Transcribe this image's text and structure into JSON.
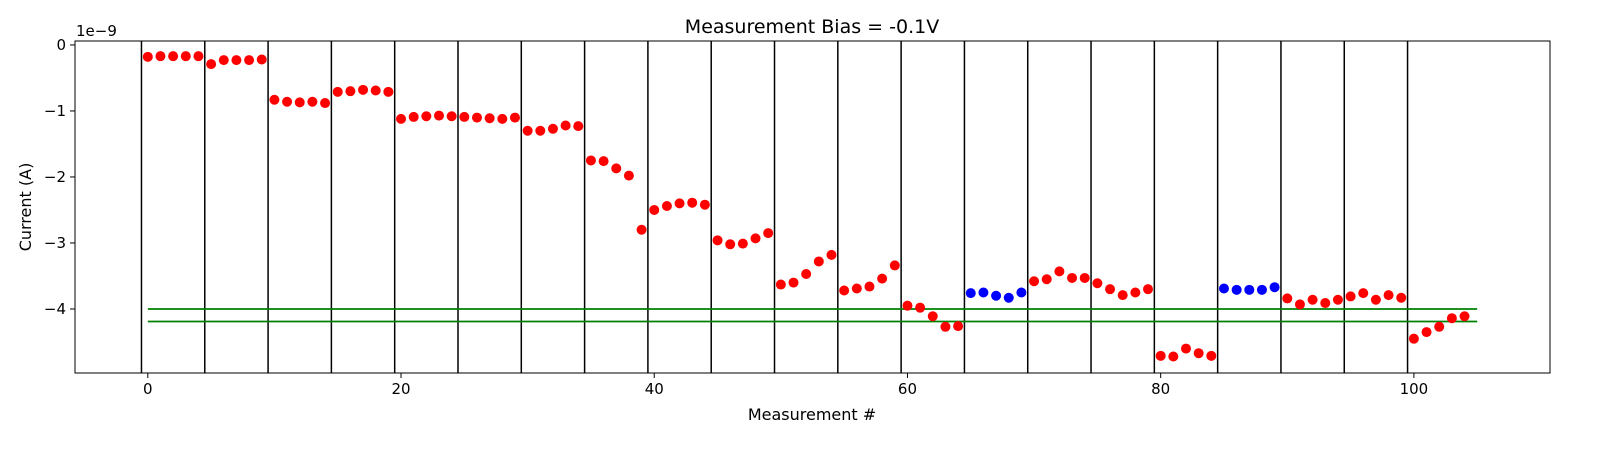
{
  "chart_data": {
    "type": "scatter",
    "title": "Measurement Bias = -0.1V",
    "xlabel": "Measurement #",
    "ylabel": "Current (A)",
    "y_offset_label": "1e−9",
    "xlim": [
      -5.75,
      110.75
    ],
    "ylim": [
      -4.97,
      0.06
    ],
    "x_ticks": [
      0,
      20,
      40,
      60,
      80,
      100
    ],
    "x_tick_labels": [
      "0",
      "20",
      "40",
      "60",
      "80",
      "100"
    ],
    "y_ticks": [
      0,
      -1,
      -2,
      -3,
      -4
    ],
    "y_tick_labels": [
      "0",
      "−1",
      "−2",
      "−3",
      "−4"
    ],
    "y_unit_scale": 1e-09,
    "grid": false,
    "vertical_separators": [
      -0.5,
      4.5,
      9.5,
      14.5,
      19.5,
      24.5,
      29.5,
      34.5,
      39.5,
      44.5,
      49.5,
      54.5,
      59.5,
      64.5,
      69.5,
      74.5,
      79.5,
      84.5,
      89.5,
      94.5,
      99.5
    ],
    "horizontal_lines": [
      {
        "y": -4.0,
        "x_range": [
          0,
          105
        ],
        "color": "#008000"
      },
      {
        "y": -4.19,
        "x_range": [
          0,
          105
        ],
        "color": "#008000"
      }
    ],
    "series": [
      {
        "color": "#ff0000",
        "x": [
          0,
          1,
          2,
          3,
          4,
          5,
          6,
          7,
          8,
          9,
          10,
          11,
          12,
          13,
          14,
          15,
          16,
          17,
          18,
          19,
          20,
          21,
          22,
          23,
          24,
          25,
          26,
          27,
          28,
          29,
          30,
          31,
          32,
          33,
          34,
          35,
          36,
          37,
          38,
          39,
          40,
          41,
          42,
          43,
          44,
          45,
          46,
          47,
          48,
          49,
          50,
          51,
          52,
          53,
          54,
          55,
          56,
          57,
          58,
          59,
          60,
          61,
          62,
          63,
          64,
          70,
          71,
          72,
          73,
          74,
          75,
          76,
          77,
          78,
          79,
          80,
          81,
          82,
          83,
          84,
          90,
          91,
          92,
          93,
          94,
          95,
          96,
          97,
          98,
          99,
          100,
          101,
          102,
          103,
          104
        ],
        "y": [
          -0.18,
          -0.17,
          -0.17,
          -0.17,
          -0.17,
          -0.29,
          -0.23,
          -0.23,
          -0.23,
          -0.22,
          -0.83,
          -0.86,
          -0.87,
          -0.86,
          -0.88,
          -0.71,
          -0.7,
          -0.68,
          -0.69,
          -0.71,
          -1.12,
          -1.09,
          -1.08,
          -1.07,
          -1.08,
          -1.09,
          -1.1,
          -1.11,
          -1.12,
          -1.1,
          -1.3,
          -1.3,
          -1.27,
          -1.22,
          -1.23,
          -1.75,
          -1.76,
          -1.87,
          -1.98,
          -2.8,
          -2.5,
          -2.44,
          -2.4,
          -2.39,
          -2.42,
          -2.96,
          -3.02,
          -3.01,
          -2.93,
          -2.85,
          -3.63,
          -3.6,
          -3.47,
          -3.28,
          -3.18,
          -3.72,
          -3.69,
          -3.66,
          -3.54,
          -3.34,
          -3.95,
          -3.98,
          -4.11,
          -4.27,
          -4.26,
          -3.58,
          -3.55,
          -3.43,
          -3.53,
          -3.53,
          -3.61,
          -3.7,
          -3.79,
          -3.75,
          -3.7,
          -4.71,
          -4.72,
          -4.6,
          -4.67,
          -4.71,
          -3.84,
          -3.93,
          -3.86,
          -3.91,
          -3.86,
          -3.81,
          -3.76,
          -3.86,
          -3.79,
          -3.83,
          -4.45,
          -4.35,
          -4.27,
          -4.14,
          -4.11
        ]
      },
      {
        "color": "#0000ff",
        "x": [
          65,
          66,
          67,
          68,
          69,
          85,
          86,
          87,
          88,
          89
        ],
        "y": [
          -3.76,
          -3.75,
          -3.8,
          -3.83,
          -3.75,
          -3.69,
          -3.71,
          -3.71,
          -3.71,
          -3.67
        ]
      }
    ]
  }
}
